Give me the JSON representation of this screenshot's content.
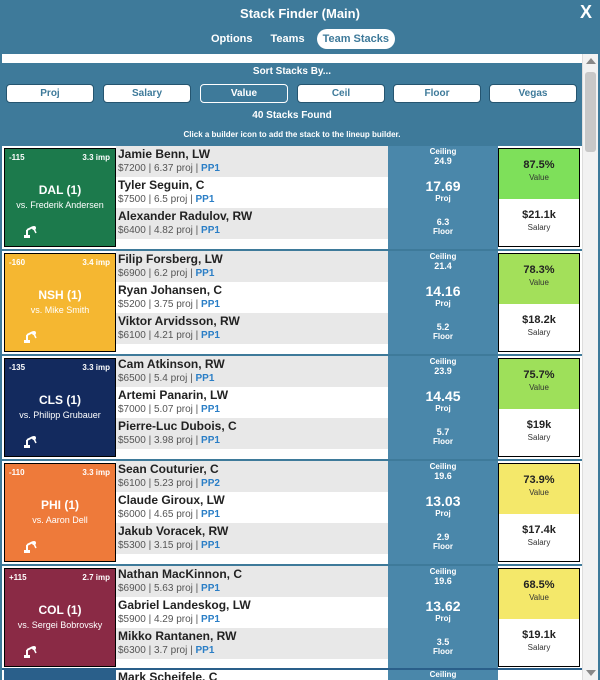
{
  "window": {
    "title": "Stack Finder (Main)",
    "close_label": "X"
  },
  "tabs": [
    {
      "label": "Options",
      "active": false
    },
    {
      "label": "Teams",
      "active": false
    },
    {
      "label": "Team Stacks",
      "active": true
    }
  ],
  "sort": {
    "heading": "Sort Stacks By...",
    "buttons": [
      "Proj",
      "Salary",
      "Value",
      "Ceil",
      "Floor",
      "Vegas"
    ],
    "active": "Value"
  },
  "found_text": "40 Stacks Found",
  "hint_text": "Click a builder icon to add the stack to the lineup builder.",
  "labels": {
    "ceiling": "Ceiling",
    "proj": "Proj",
    "floor": "Floor",
    "value": "Value",
    "salary": "Salary"
  },
  "stacks": [
    {
      "odds": "-115",
      "implied": "3.3 imp",
      "team": "DAL (1)",
      "opponent": "vs. Frederik Andersen",
      "team_color": "#1c7a4c",
      "players": [
        {
          "name": "Jamie Benn, LW",
          "detail": "$7200 | 6.37 proj | ",
          "line": "PP1"
        },
        {
          "name": "Tyler Seguin, C",
          "detail": "$7500 | 6.5 proj | ",
          "line": "PP1"
        },
        {
          "name": "Alexander Radulov, RW",
          "detail": "$6400 | 4.82 proj | ",
          "line": "PP1"
        }
      ],
      "ceiling": "24.9",
      "proj": "17.69",
      "floor": "6.3",
      "value": "87.5%",
      "value_color": "#7ee05a",
      "salary": "$21.1k"
    },
    {
      "odds": "-160",
      "implied": "3.4 imp",
      "team": "NSH (1)",
      "opponent": "vs. Mike Smith",
      "team_color": "#f5b731",
      "players": [
        {
          "name": "Filip Forsberg, LW",
          "detail": "$6900 | 6.2 proj | ",
          "line": "PP1"
        },
        {
          "name": "Ryan Johansen, C",
          "detail": "$5200 | 3.75 proj | ",
          "line": "PP1"
        },
        {
          "name": "Viktor Arvidsson, RW",
          "detail": "$6100 | 4.21 proj | ",
          "line": "PP1"
        }
      ],
      "ceiling": "21.4",
      "proj": "14.16",
      "floor": "5.2",
      "value": "78.3%",
      "value_color": "#a3e05a",
      "salary": "$18.2k"
    },
    {
      "odds": "-135",
      "implied": "3.3 imp",
      "team": "CLS (1)",
      "opponent": "vs. Philipp Grubauer",
      "team_color": "#132a5e",
      "players": [
        {
          "name": "Cam Atkinson, RW",
          "detail": "$6500 | 5.4 proj | ",
          "line": "PP1"
        },
        {
          "name": "Artemi Panarin, LW",
          "detail": "$7000 | 5.07 proj | ",
          "line": "PP1"
        },
        {
          "name": "Pierre-Luc Dubois, C",
          "detail": "$5500 | 3.98 proj | ",
          "line": "PP1"
        }
      ],
      "ceiling": "23.9",
      "proj": "14.45",
      "floor": "5.7",
      "value": "75.7%",
      "value_color": "#9ee05a",
      "salary": "$19k"
    },
    {
      "odds": "-110",
      "implied": "3.3 imp",
      "team": "PHI (1)",
      "opponent": "vs. Aaron Dell",
      "team_color": "#ee7a3a",
      "players": [
        {
          "name": "Sean Couturier, C",
          "detail": "$6100 | 5.23 proj | ",
          "line": "PP2"
        },
        {
          "name": "Claude Giroux, LW",
          "detail": "$6000 | 4.65 proj | ",
          "line": "PP1"
        },
        {
          "name": "Jakub Voracek, RW",
          "detail": "$5300 | 3.15 proj | ",
          "line": "PP1"
        }
      ],
      "ceiling": "19.6",
      "proj": "13.03",
      "floor": "2.9",
      "value": "73.9%",
      "value_color": "#f4e86a",
      "salary": "$17.4k"
    },
    {
      "odds": "+115",
      "implied": "2.7 imp",
      "team": "COL (1)",
      "opponent": "vs. Sergei Bobrovsky",
      "team_color": "#8a2a45",
      "players": [
        {
          "name": "Nathan MacKinnon, C",
          "detail": "$6900 | 5.63 proj | ",
          "line": "PP1"
        },
        {
          "name": "Gabriel Landeskog, LW",
          "detail": "$5900 | 4.29 proj | ",
          "line": "PP1"
        },
        {
          "name": "Mikko Rantanen, RW",
          "detail": "$6300 | 3.7 proj | ",
          "line": "PP1"
        }
      ],
      "ceiling": "19.6",
      "proj": "13.62",
      "floor": "3.5",
      "value": "68.5%",
      "value_color": "#f4e86a",
      "salary": "$19.1k"
    }
  ],
  "partial_row": {
    "name": "Mark Scheifele, C",
    "ceiling": "Ceiling"
  }
}
